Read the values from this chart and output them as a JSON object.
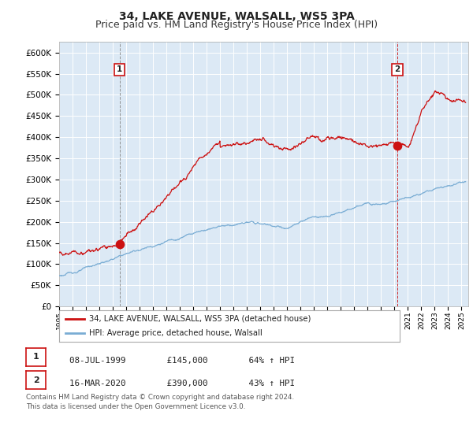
{
  "title": "34, LAKE AVENUE, WALSALL, WS5 3PA",
  "subtitle": "Price paid vs. HM Land Registry's House Price Index (HPI)",
  "ylim": [
    0,
    625000
  ],
  "yticks": [
    0,
    50000,
    100000,
    150000,
    200000,
    250000,
    300000,
    350000,
    400000,
    450000,
    500000,
    550000,
    600000
  ],
  "xlim_start": 1995.0,
  "xlim_end": 2025.5,
  "bg_color": "#ffffff",
  "plot_bg_color": "#dce9f5",
  "grid_color": "#ffffff",
  "hpi_color": "#7aadd4",
  "price_color": "#cc1111",
  "transactions": [
    {
      "date": 1999.52,
      "price": 145000,
      "label": "1",
      "vline_style": "dashed",
      "vline_color": "#888888"
    },
    {
      "date": 2020.21,
      "price": 390000,
      "label": "2",
      "vline_style": "dashed",
      "vline_color": "#cc1111"
    }
  ],
  "legend_entries": [
    {
      "label": "34, LAKE AVENUE, WALSALL, WS5 3PA (detached house)",
      "color": "#cc1111"
    },
    {
      "label": "HPI: Average price, detached house, Walsall",
      "color": "#7aadd4"
    }
  ],
  "sale_table": [
    {
      "num": "1",
      "date": "08-JUL-1999",
      "price": "£145,000",
      "hpi": "64% ↑ HPI"
    },
    {
      "num": "2",
      "date": "16-MAR-2020",
      "price": "£390,000",
      "hpi": "43% ↑ HPI"
    }
  ],
  "footer": "Contains HM Land Registry data © Crown copyright and database right 2024.\nThis data is licensed under the Open Government Licence v3.0.",
  "title_fontsize": 10,
  "subtitle_fontsize": 9,
  "tick_fontsize": 7.5
}
